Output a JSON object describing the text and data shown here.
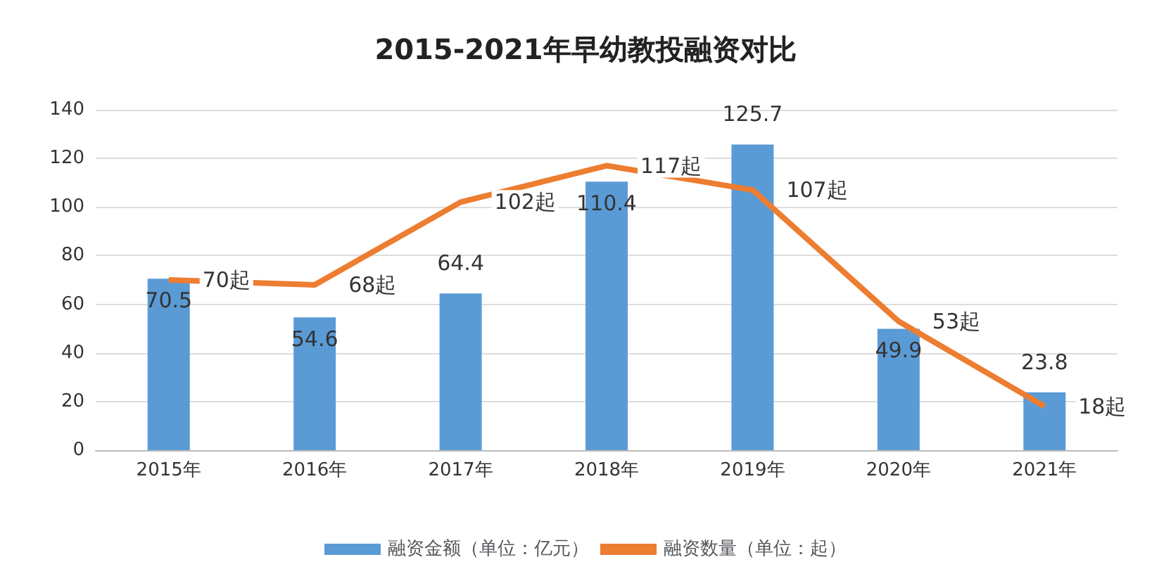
{
  "chart_data": {
    "type": "bar",
    "title": "2015-2021年早幼教投融资对比",
    "categories": [
      "2015年",
      "2016年",
      "2017年",
      "2018年",
      "2019年",
      "2020年",
      "2021年"
    ],
    "series": [
      {
        "name": "融资金额（单位：亿元）",
        "color": "#5b9bd5",
        "values": [
          70.5,
          54.6,
          64.4,
          110.4,
          125.7,
          49.9,
          23.8
        ],
        "value_labels": [
          "70.5",
          "54.6",
          "64.4",
          "110.4",
          "125.7",
          "49.9",
          "23.8"
        ]
      },
      {
        "name": "融资数量（单位：起）",
        "type": "line",
        "color": "#ed7d31",
        "values": [
          70,
          68,
          102,
          117,
          107,
          53,
          18
        ],
        "value_labels": [
          "70起",
          "68起",
          "102起",
          "117起",
          "107起",
          "53起",
          "18起"
        ]
      }
    ],
    "ylim": [
      0,
      140
    ],
    "yticks": [
      0,
      20,
      40,
      60,
      80,
      100,
      120,
      140
    ],
    "grid": "y",
    "legend": "bottom",
    "marker": "none"
  }
}
